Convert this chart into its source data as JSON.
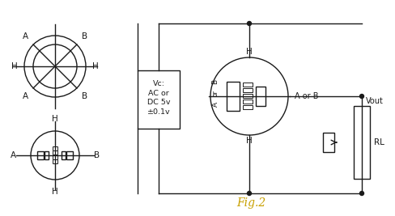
{
  "fig2_label": "Fig.2",
  "vc_text": "Vc:\nAC or\nDC 5v\n±0.1v",
  "aorb_label": "A or B",
  "vout_label": "Vout",
  "rl_label": "RL",
  "bg_color": "#ffffff",
  "line_color": "#1a1a1a",
  "figsize": [
    4.89,
    2.67
  ],
  "dpi": 100
}
